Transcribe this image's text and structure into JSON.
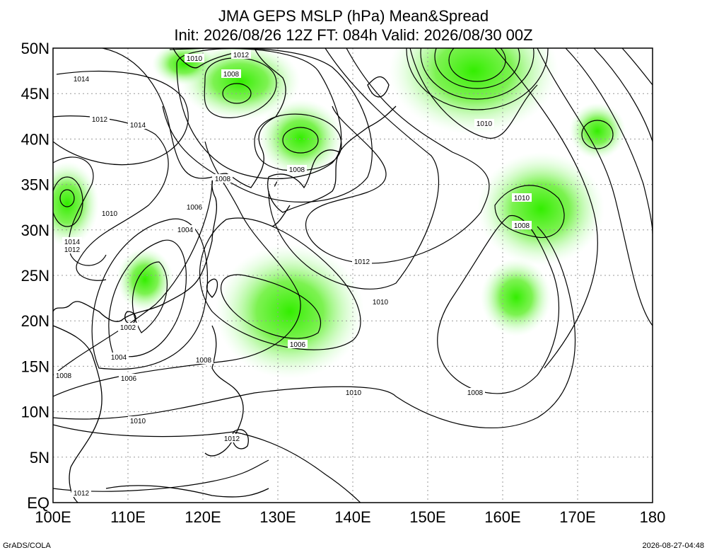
{
  "title": "JMA GEPS MSLP (hPa) Mean&Spread",
  "subtitle": "Init: 2026/08/26 12Z  FT: 084h  Valid: 2026/08/30 00Z",
  "lat_labels": [
    "EQ",
    "5N",
    "10N",
    "15N",
    "20N",
    "25N",
    "30N",
    "35N",
    "40N",
    "45N",
    "50N"
  ],
  "lon_labels": [
    "100E",
    "110E",
    "120E",
    "130E",
    "140E",
    "150E",
    "160E",
    "170E",
    "180"
  ],
  "contour_labels": [
    "1010",
    "1012",
    "1014",
    "1008",
    "1012",
    "1014",
    "1010",
    "1008",
    "1008",
    "1006",
    "1010",
    "1004",
    "1010",
    "1008",
    "1014",
    "1012",
    "1012",
    "1010",
    "1002",
    "1006",
    "1004",
    "1008",
    "1008",
    "1006",
    "1010",
    "1008",
    "1010",
    "1012",
    "1012"
  ],
  "footer_left": "GrADS/COLA",
  "footer_right": "2026-08-27-04:48"
}
